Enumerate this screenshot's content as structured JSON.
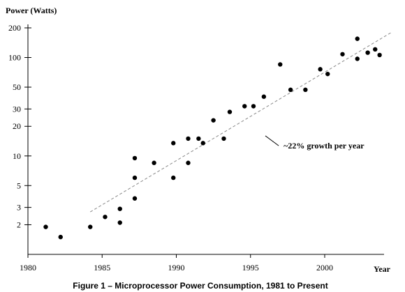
{
  "chart_data": {
    "type": "scatter",
    "title": "",
    "ylabel": "Power (Watts)",
    "xlabel": "Year",
    "caption": "Figure 1 – Microprocessor Power Consumption, 1981 to Present",
    "yscale": "log",
    "ylim": [
      1,
      200
    ],
    "xlim": [
      1980,
      2004
    ],
    "x_ticks": [
      1980,
      1985,
      1990,
      1995,
      2000
    ],
    "y_ticks": [
      2,
      3,
      5,
      10,
      20,
      30,
      50,
      100,
      200
    ],
    "grid": false,
    "legend": "none",
    "marker_color": "#000000",
    "trend_color": "#888888",
    "points": [
      {
        "x": 1981.2,
        "y": 1.9
      },
      {
        "x": 1982.2,
        "y": 1.5
      },
      {
        "x": 1984.2,
        "y": 1.9
      },
      {
        "x": 1985.2,
        "y": 2.4
      },
      {
        "x": 1986.2,
        "y": 2.9
      },
      {
        "x": 1986.2,
        "y": 2.1
      },
      {
        "x": 1987.2,
        "y": 9.5
      },
      {
        "x": 1987.2,
        "y": 6.0
      },
      {
        "x": 1987.2,
        "y": 3.7
      },
      {
        "x": 1988.5,
        "y": 8.5
      },
      {
        "x": 1989.8,
        "y": 13.5
      },
      {
        "x": 1989.8,
        "y": 6.0
      },
      {
        "x": 1990.8,
        "y": 15.0
      },
      {
        "x": 1990.8,
        "y": 8.5
      },
      {
        "x": 1991.5,
        "y": 15.0
      },
      {
        "x": 1991.8,
        "y": 13.5
      },
      {
        "x": 1992.5,
        "y": 23.0
      },
      {
        "x": 1993.2,
        "y": 15.0
      },
      {
        "x": 1993.6,
        "y": 28.0
      },
      {
        "x": 1994.6,
        "y": 32.0
      },
      {
        "x": 1995.2,
        "y": 32.0
      },
      {
        "x": 1995.9,
        "y": 40.0
      },
      {
        "x": 1997.0,
        "y": 85.0
      },
      {
        "x": 1997.7,
        "y": 47.0
      },
      {
        "x": 1998.7,
        "y": 47.0
      },
      {
        "x": 1999.7,
        "y": 76.0
      },
      {
        "x": 2000.2,
        "y": 68.0
      },
      {
        "x": 2001.2,
        "y": 108.0
      },
      {
        "x": 2002.2,
        "y": 155.0
      },
      {
        "x": 2002.2,
        "y": 97.0
      },
      {
        "x": 2002.9,
        "y": 112.0
      },
      {
        "x": 2003.4,
        "y": 121.0
      },
      {
        "x": 2003.7,
        "y": 106.0
      }
    ],
    "trend": {
      "label": "~22% growth per year",
      "start": {
        "x": 1984.2,
        "y": 2.7
      },
      "end": {
        "x": 2004.5,
        "y": 180.0
      },
      "callout_from": {
        "x": 1996.0,
        "y": 16.0
      },
      "callout_to": {
        "x": 1996.9,
        "y": 12.7
      }
    }
  }
}
